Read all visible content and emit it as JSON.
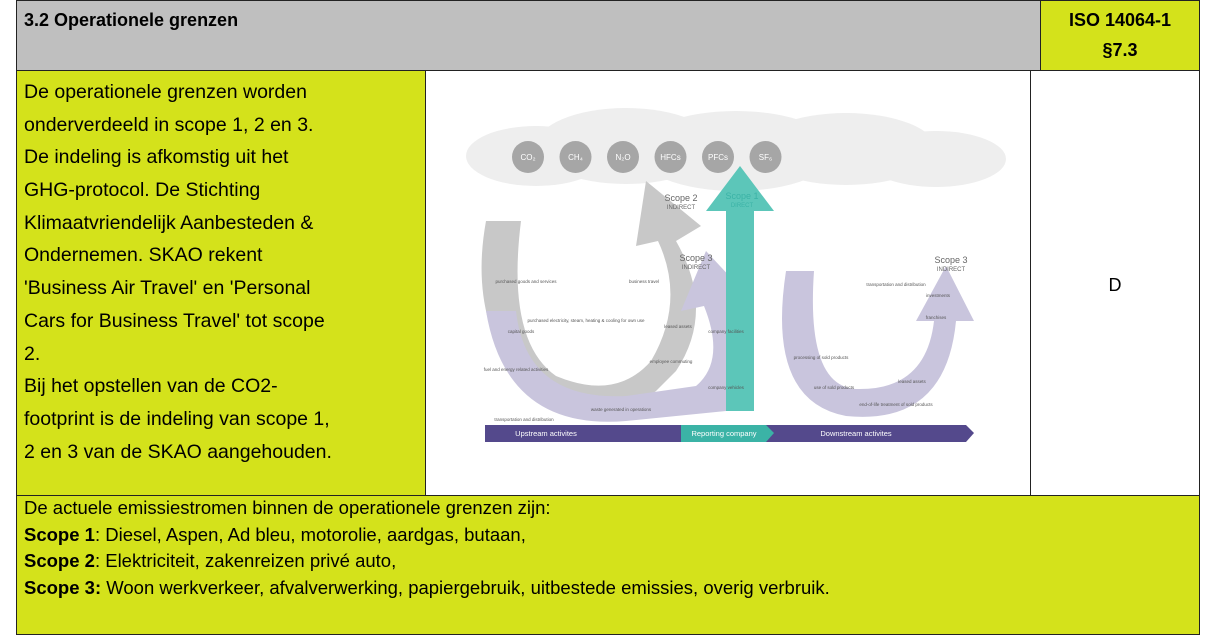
{
  "header": {
    "title": "3.2 Operationele grenzen",
    "reference": [
      "ISO 14064-1",
      "§7.3"
    ]
  },
  "body": {
    "text_lines": [
      "De operationele grenzen worden",
      "onderverdeeld in scope 1, 2 en 3.",
      "De indeling is afkomstig uit het",
      "GHG-protocol. De Stichting",
      "Klimaatvriendelijk Aanbesteden &",
      "Ondernemen. SKAO rekent",
      "'Business Air Travel' en 'Personal",
      "Cars for Business Travel' tot scope",
      "2.",
      "Bij het opstellen van de CO2-",
      "footprint is de indeling van scope 1,",
      "2 en 3 van de SKAO aangehouden."
    ],
    "status": "D"
  },
  "diagram": {
    "gases": [
      "CO₂",
      "CH₄",
      "N₂O",
      "HFCs",
      "PFCs",
      "SF₆"
    ],
    "scopes": [
      {
        "name": "Scope 2",
        "kind": "INDIRECT"
      },
      {
        "name": "Scope 1",
        "kind": "DIRECT"
      },
      {
        "name": "Scope 3",
        "kind": "INDIRECT"
      },
      {
        "name": "Scope 3",
        "kind": "INDIRECT"
      }
    ],
    "labels": [
      "purchased goods and services",
      "capital goods",
      "fuel and energy related activities",
      "transportation and distribution",
      "waste generated in operations",
      "business travel",
      "employee commuting",
      "leased assets",
      "purchased electricity, steam, heating & cooling for own use",
      "company facilities",
      "company vehicles",
      "transportation and distribution",
      "processing of sold products",
      "use of sold products",
      "end-of-life treatment of sold products",
      "leased assets",
      "franchises",
      "investments"
    ],
    "bar": [
      "Upstream activites",
      "Reporting company",
      "Downstream activites"
    ]
  },
  "footer": {
    "intro": "De actuele emissiestromen binnen de operationele grenzen zijn:",
    "lines": [
      {
        "label": "Scope 1",
        "text": ": Diesel, Aspen, Ad bleu, motorolie, aardgas, butaan,"
      },
      {
        "label": "Scope 2",
        "text": ": Elektriciteit, zakenreizen privé auto,"
      },
      {
        "label": "Scope 3:",
        "text": " Woon werkverkeer, afvalverwerking, papiergebruik, uitbestede emissies, overig verbruik."
      }
    ]
  }
}
